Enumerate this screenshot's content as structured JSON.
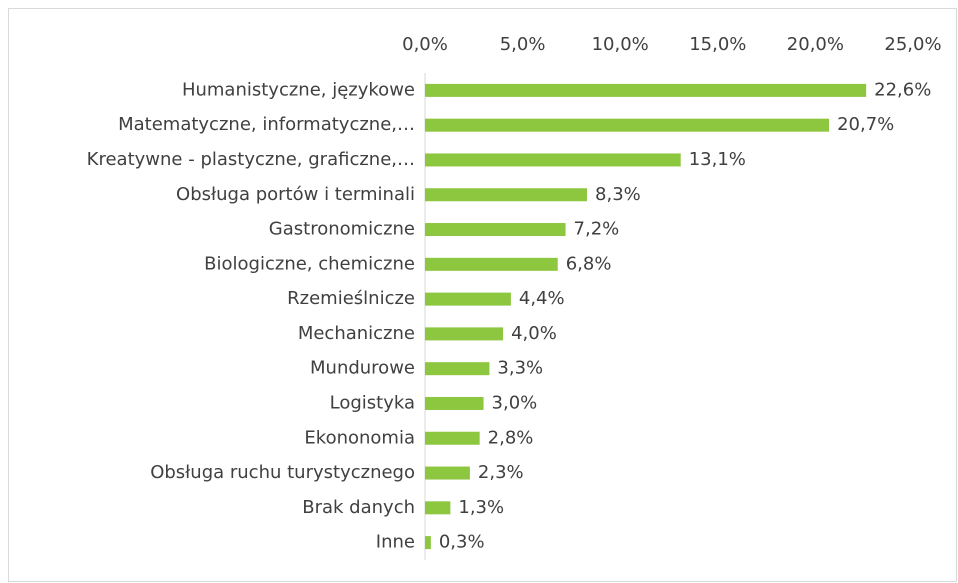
{
  "chart_data": {
    "type": "bar",
    "orientation": "horizontal",
    "categories": [
      "Humanistyczne, językowe",
      "Matematyczne, informatyczne,…",
      "Kreatywne - plastyczne, graficzne,…",
      "Obsługa portów i terminali",
      "Gastronomiczne",
      "Biologiczne, chemiczne",
      "Rzemieślnicze",
      "Mechaniczne",
      "Mundurowe",
      "Logistyka",
      "Ekononomia",
      "Obsługa ruchu turystycznego",
      "Brak danych",
      "Inne"
    ],
    "values": [
      22.6,
      20.7,
      13.1,
      8.3,
      7.2,
      6.8,
      4.4,
      4.0,
      3.3,
      3.0,
      2.8,
      2.3,
      1.3,
      0.3
    ],
    "value_labels": [
      "22,6%",
      "20,7%",
      "13,1%",
      "8,3%",
      "7,2%",
      "6,8%",
      "4,4%",
      "4,0%",
      "3,3%",
      "3,0%",
      "2,8%",
      "2,3%",
      "1,3%",
      "0,3%"
    ],
    "color": "#8dc63f",
    "xlim": [
      0,
      25
    ],
    "xticks": [
      {
        "value": 0,
        "label": "0,0%"
      },
      {
        "value": 5,
        "label": "5,0%"
      },
      {
        "value": 10,
        "label": "10,0%"
      },
      {
        "value": 15,
        "label": "15,0%"
      },
      {
        "value": 20,
        "label": "20,0%"
      },
      {
        "value": 25,
        "label": "25,0%"
      }
    ],
    "grid": false
  }
}
